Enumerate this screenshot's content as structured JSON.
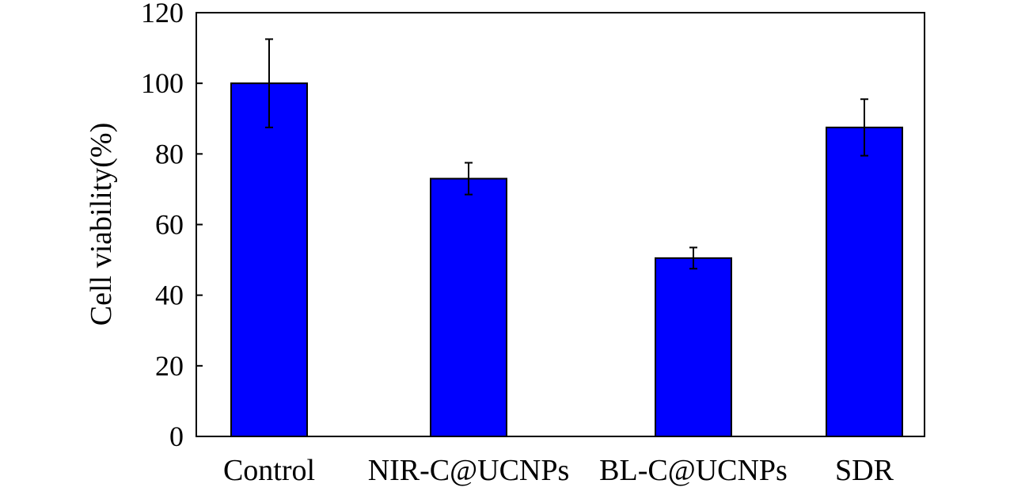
{
  "chart_data": {
    "type": "bar",
    "title": "",
    "xlabel": "",
    "ylabel": "Cell viability(%)",
    "categories": [
      "Control",
      "NIR-C@UCNPs",
      "BL-C@UCNPs",
      "SDR"
    ],
    "values": [
      100,
      73,
      50.5,
      87.5
    ],
    "errors": [
      12.5,
      4.5,
      3,
      8
    ],
    "ylim": [
      0,
      120
    ],
    "yticks": [
      "0",
      "20",
      "40",
      "60",
      "80",
      "100",
      "120"
    ],
    "grid": false,
    "legend": "none",
    "colors": {
      "bar": "#0000ff",
      "bar_edge": "#000000",
      "error_bar": "#000000",
      "axis": "#000000"
    }
  }
}
